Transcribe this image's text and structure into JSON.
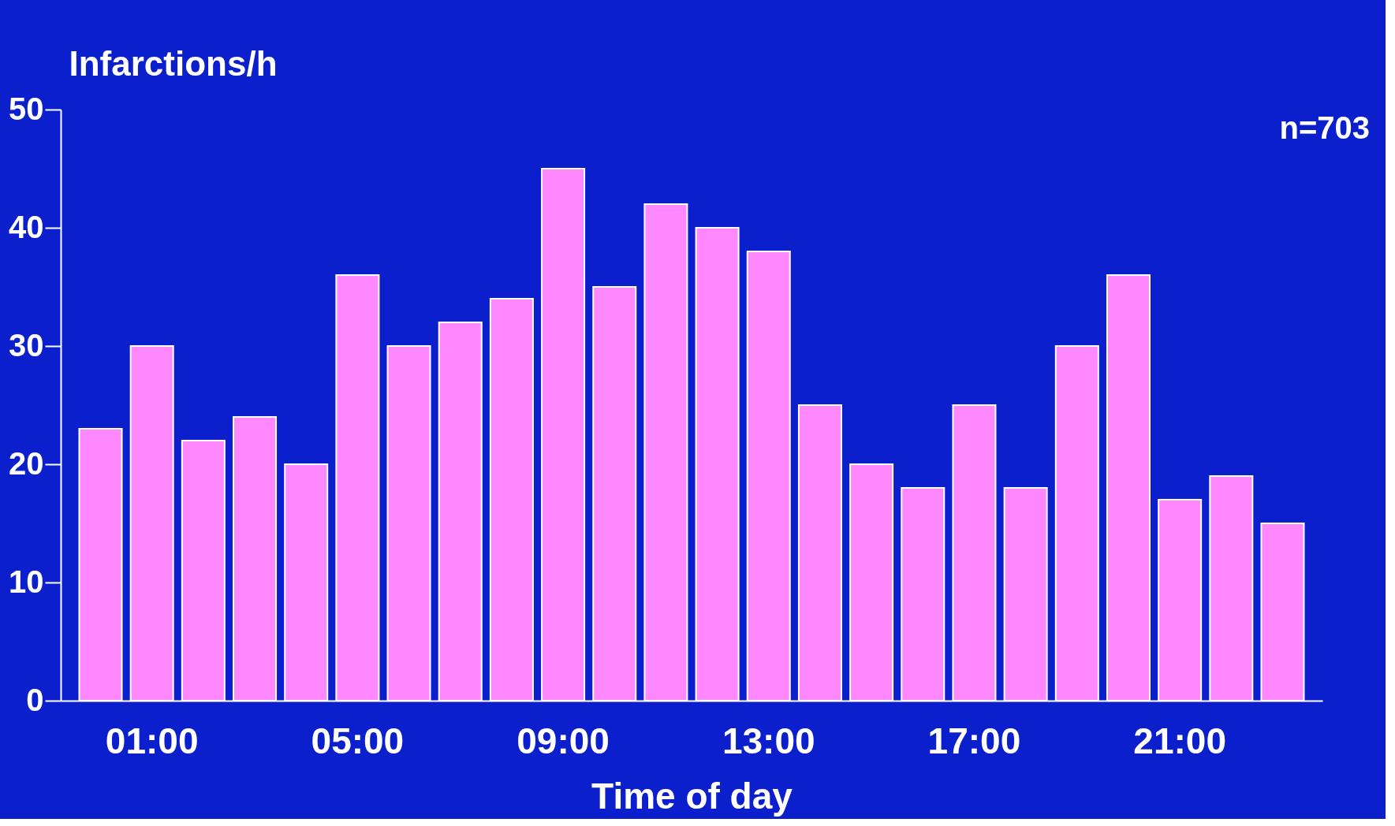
{
  "chart_data": {
    "type": "bar",
    "xlabel": "Time of day",
    "ylabel": "Infarctions/h",
    "categories": [
      null,
      "01:00",
      null,
      null,
      null,
      "05:00",
      null,
      null,
      null,
      "09:00",
      null,
      null,
      null,
      "13:00",
      null,
      null,
      null,
      "17:00",
      null,
      null,
      null,
      "21:00",
      null,
      null
    ],
    "values": [
      23,
      30,
      22,
      24,
      20,
      36,
      30,
      32,
      34,
      45,
      35,
      42,
      40,
      38,
      25,
      20,
      18,
      25,
      18,
      30,
      36,
      17,
      19,
      15
    ],
    "color": "#ff88ff",
    "ylim": [
      0,
      50
    ],
    "yticks": [
      0,
      10,
      20,
      30,
      40,
      50
    ],
    "grid": false,
    "annotations": [
      "n=703"
    ]
  }
}
